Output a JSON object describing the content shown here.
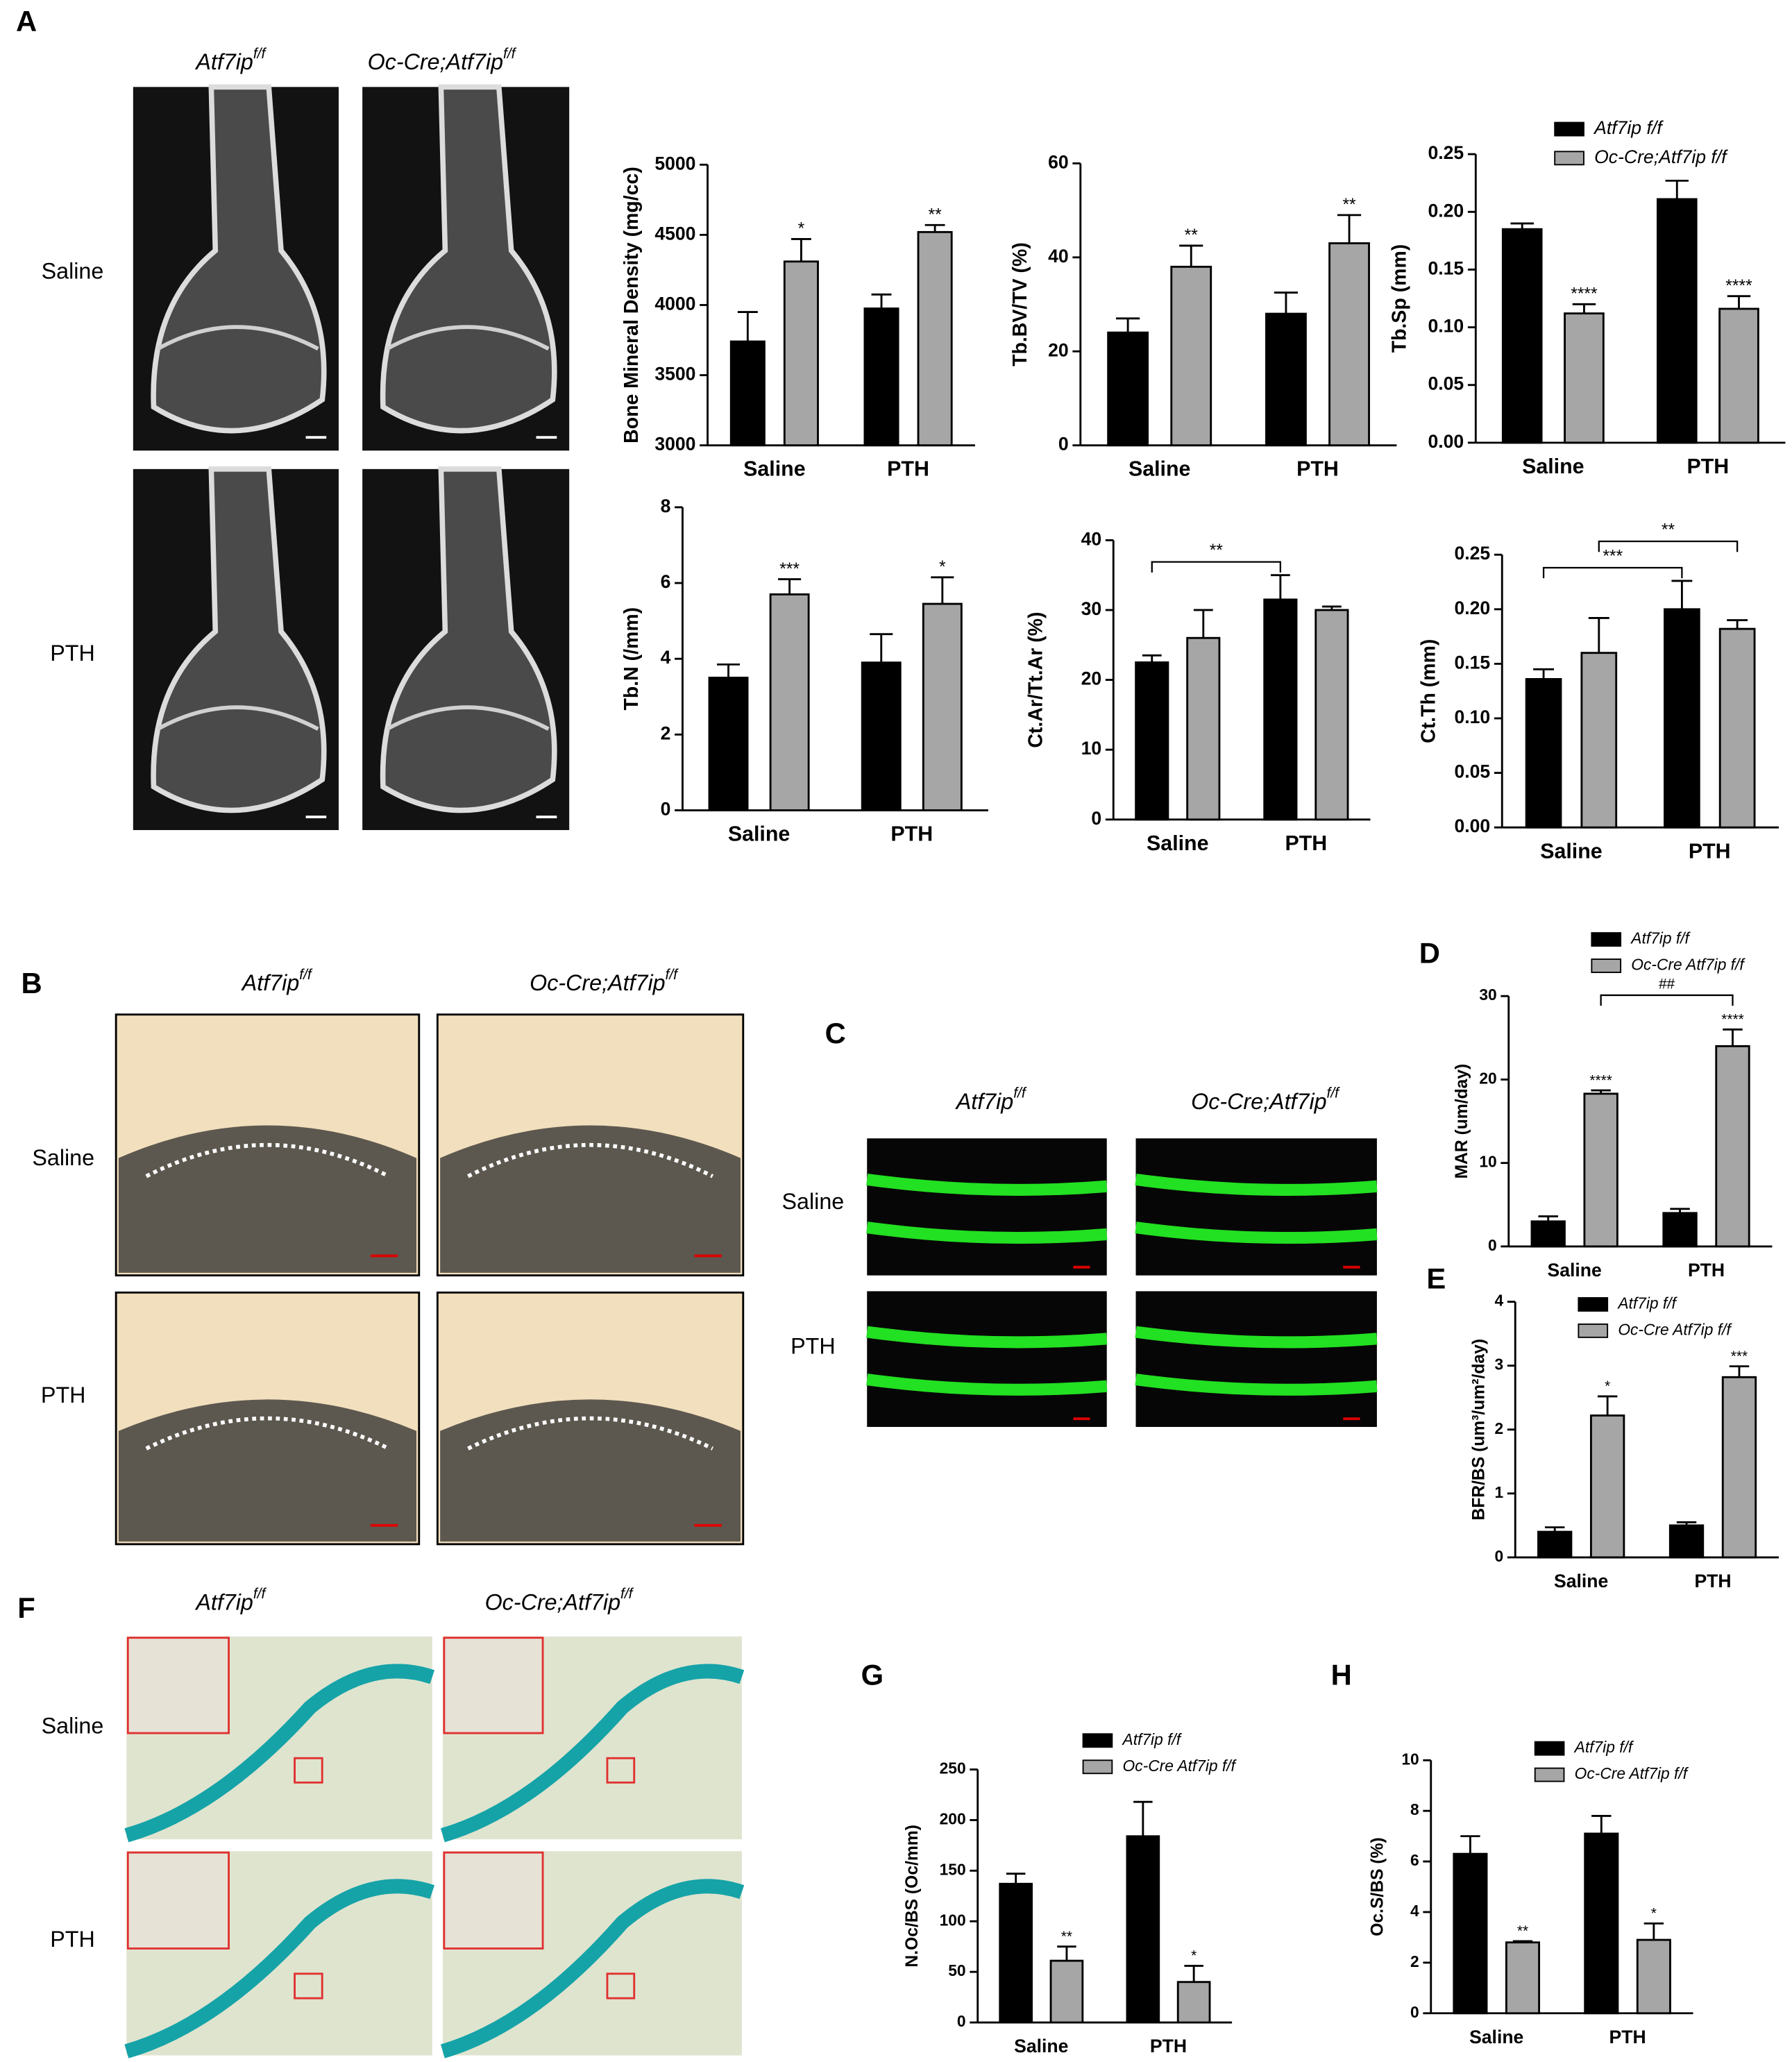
{
  "figure": {
    "panel_letters": [
      "A",
      "B",
      "C",
      "D",
      "E",
      "F",
      "G",
      "H"
    ],
    "image_panels": [
      {
        "columns": [
          {
            "base": "Atf7ip",
            "sup": "f/f"
          },
          {
            "base": "Oc-Cre;Atf7ip",
            "sup": "f/f"
          }
        ],
        "rows": [
          "Saline",
          "PTH"
        ]
      },
      {
        "columns": [
          {
            "base": "Atf7ip",
            "sup": "f/f"
          },
          {
            "base": "Oc-Cre;Atf7ip",
            "sup": "f/f"
          }
        ],
        "rows": [
          "Saline",
          "PTH"
        ]
      },
      {
        "columns": [
          {
            "base": "Atf7ip",
            "sup": "f/f"
          },
          {
            "base": "Oc-Cre;Atf7ip",
            "sup": "f/f"
          }
        ],
        "rows": [
          "Saline",
          "PTH"
        ]
      },
      {
        "columns": [
          {
            "base": "Atf7ip",
            "sup": "f/f"
          },
          {
            "base": "Oc-Cre;Atf7ip",
            "sup": "f/f"
          }
        ],
        "rows": [
          "Saline",
          "PTH"
        ]
      }
    ]
  },
  "chart_data": [
    {
      "type": "bar",
      "y_label": "Bone Mineral Density (mg/cc)",
      "categories": [
        "Saline",
        "PTH"
      ],
      "ylim": [
        3000,
        5000
      ],
      "yticks": [
        3000,
        3500,
        4000,
        4500,
        5000
      ],
      "series": [
        {
          "color": "#000000",
          "values": [
            3740,
            3975
          ],
          "errors": [
            210,
            100
          ]
        },
        {
          "color": "#a6a6a6",
          "values": [
            4310,
            4520
          ],
          "errors": [
            160,
            50
          ],
          "significance": [
            "*",
            "**"
          ]
        }
      ]
    },
    {
      "type": "bar",
      "y_label": "Tb.BV/TV (%)",
      "categories": [
        "Saline",
        "PTH"
      ],
      "ylim": [
        0,
        60
      ],
      "yticks": [
        0,
        20,
        40,
        60
      ],
      "series": [
        {
          "color": "#000000",
          "values": [
            24,
            28
          ],
          "errors": [
            3,
            4.5
          ]
        },
        {
          "color": "#a6a6a6",
          "values": [
            38,
            43
          ],
          "errors": [
            4.5,
            6
          ],
          "significance": [
            "**",
            "**"
          ]
        }
      ]
    },
    {
      "type": "bar",
      "y_label": "Tb.Sp (mm)",
      "categories": [
        "Saline",
        "PTH"
      ],
      "ylim": [
        0,
        0.25
      ],
      "yticks": [
        {
          "value": 0,
          "label": "0.00"
        },
        0.05,
        {
          "value": 0.1,
          "label": "0.10"
        },
        0.15,
        {
          "value": 0.2,
          "label": "0.20"
        },
        0.25
      ],
      "series": [
        {
          "name": "Atf7ip f/f",
          "color": "#000000",
          "values": [
            0.185,
            0.211
          ],
          "errors": [
            0.005,
            0.016
          ]
        },
        {
          "name": "Oc-Cre;Atf7ip f/f",
          "color": "#a6a6a6",
          "values": [
            0.112,
            0.116
          ],
          "errors": [
            0.008,
            0.011
          ],
          "significance": [
            "****",
            "****"
          ]
        }
      ]
    },
    {
      "type": "bar",
      "y_label": "Tb.N (/mm)",
      "categories": [
        "Saline",
        "PTH"
      ],
      "ylim": [
        0,
        8
      ],
      "yticks": [
        0,
        2,
        4,
        6,
        8
      ],
      "series": [
        {
          "color": "#000000",
          "values": [
            3.5,
            3.9
          ],
          "errors": [
            0.35,
            0.75
          ]
        },
        {
          "color": "#a6a6a6",
          "values": [
            5.7,
            5.45
          ],
          "errors": [
            0.4,
            0.7
          ],
          "significance": [
            "***",
            "*"
          ]
        }
      ]
    },
    {
      "type": "bar",
      "y_label": "Ct.Ar/Tt.Ar (%)",
      "categories": [
        "Saline",
        "PTH"
      ],
      "ylim": [
        0,
        40
      ],
      "yticks": [
        0,
        10,
        20,
        30,
        40
      ],
      "series": [
        {
          "color": "#000000",
          "values": [
            22.5,
            31.5
          ],
          "errors": [
            1,
            3.5
          ]
        },
        {
          "color": "#a6a6a6",
          "values": [
            26,
            30
          ],
          "errors": [
            4,
            0.5
          ]
        }
      ],
      "brackets": [
        {
          "series": 0,
          "label": "**"
        }
      ]
    },
    {
      "type": "bar",
      "y_label": "Ct.Th (mm)",
      "categories": [
        "Saline",
        "PTH"
      ],
      "ylim": [
        0,
        0.25
      ],
      "yticks": [
        {
          "value": 0,
          "label": "0.00"
        },
        0.05,
        {
          "value": 0.1,
          "label": "0.10"
        },
        0.15,
        {
          "value": 0.2,
          "label": "0.20"
        },
        0.25
      ],
      "series": [
        {
          "color": "#000000",
          "values": [
            0.136,
            0.2
          ],
          "errors": [
            0.009,
            0.026
          ]
        },
        {
          "color": "#a6a6a6",
          "values": [
            0.16,
            0.182
          ],
          "errors": [
            0.032,
            0.008
          ]
        }
      ],
      "brackets": [
        {
          "series": 0,
          "label": "***"
        },
        {
          "series": 1,
          "label": "**"
        }
      ]
    },
    {
      "type": "bar",
      "y_label": "MAR (um/day)",
      "categories": [
        "Saline",
        "PTH"
      ],
      "ylim": [
        0,
        30
      ],
      "yticks": [
        0,
        10,
        20,
        30
      ],
      "series": [
        {
          "name": "Atf7ip f/f",
          "color": "#000000",
          "values": [
            3,
            4
          ],
          "errors": [
            0.6,
            0.5
          ]
        },
        {
          "name": "Oc-Cre Atf7ip f/f",
          "color": "#a6a6a6",
          "values": [
            18.3,
            24
          ],
          "errors": [
            0.4,
            2
          ],
          "significance": [
            "****",
            "****"
          ]
        }
      ],
      "brackets": [
        {
          "series": 1,
          "label": "##"
        }
      ]
    },
    {
      "type": "bar",
      "y_label": "BFR/BS (um³/um²/day)",
      "categories": [
        "Saline",
        "PTH"
      ],
      "ylim": [
        0,
        4
      ],
      "yticks": [
        0,
        1,
        2,
        3,
        4
      ],
      "series": [
        {
          "name": "Atf7ip f/f",
          "color": "#000000",
          "values": [
            0.4,
            0.5
          ],
          "errors": [
            0.07,
            0.05
          ]
        },
        {
          "name": "Oc-Cre Atf7ip f/f",
          "color": "#a6a6a6",
          "values": [
            2.22,
            2.82
          ],
          "errors": [
            0.3,
            0.17
          ],
          "significance": [
            "*",
            "***"
          ]
        }
      ]
    },
    {
      "type": "bar",
      "y_label": "N.Oc/BS (Oc/mm)",
      "categories": [
        "Saline",
        "PTH"
      ],
      "ylim": [
        0,
        250
      ],
      "yticks": [
        0,
        50,
        100,
        150,
        200,
        250
      ],
      "series": [
        {
          "name": "Atf7ip f/f",
          "color": "#000000",
          "values": [
            137,
            184
          ],
          "errors": [
            10,
            34
          ]
        },
        {
          "name": "Oc-Cre Atf7ip f/f",
          "color": "#a6a6a6",
          "values": [
            61,
            40
          ],
          "errors": [
            14,
            16
          ],
          "significance": [
            "**",
            "*"
          ]
        }
      ]
    },
    {
      "type": "bar",
      "y_label": "Oc.S/BS (%)",
      "categories": [
        "Saline",
        "PTH"
      ],
      "ylim": [
        0,
        10
      ],
      "yticks": [
        0,
        2,
        4,
        6,
        8,
        10
      ],
      "series": [
        {
          "name": "Atf7ip f/f",
          "color": "#000000",
          "values": [
            6.3,
            7.1
          ],
          "errors": [
            0.7,
            0.7
          ]
        },
        {
          "name": "Oc-Cre Atf7ip f/f",
          "color": "#a6a6a6",
          "values": [
            2.8,
            2.9
          ],
          "errors": [
            0.05,
            0.65
          ],
          "significance": [
            "**",
            "*"
          ]
        }
      ]
    }
  ]
}
